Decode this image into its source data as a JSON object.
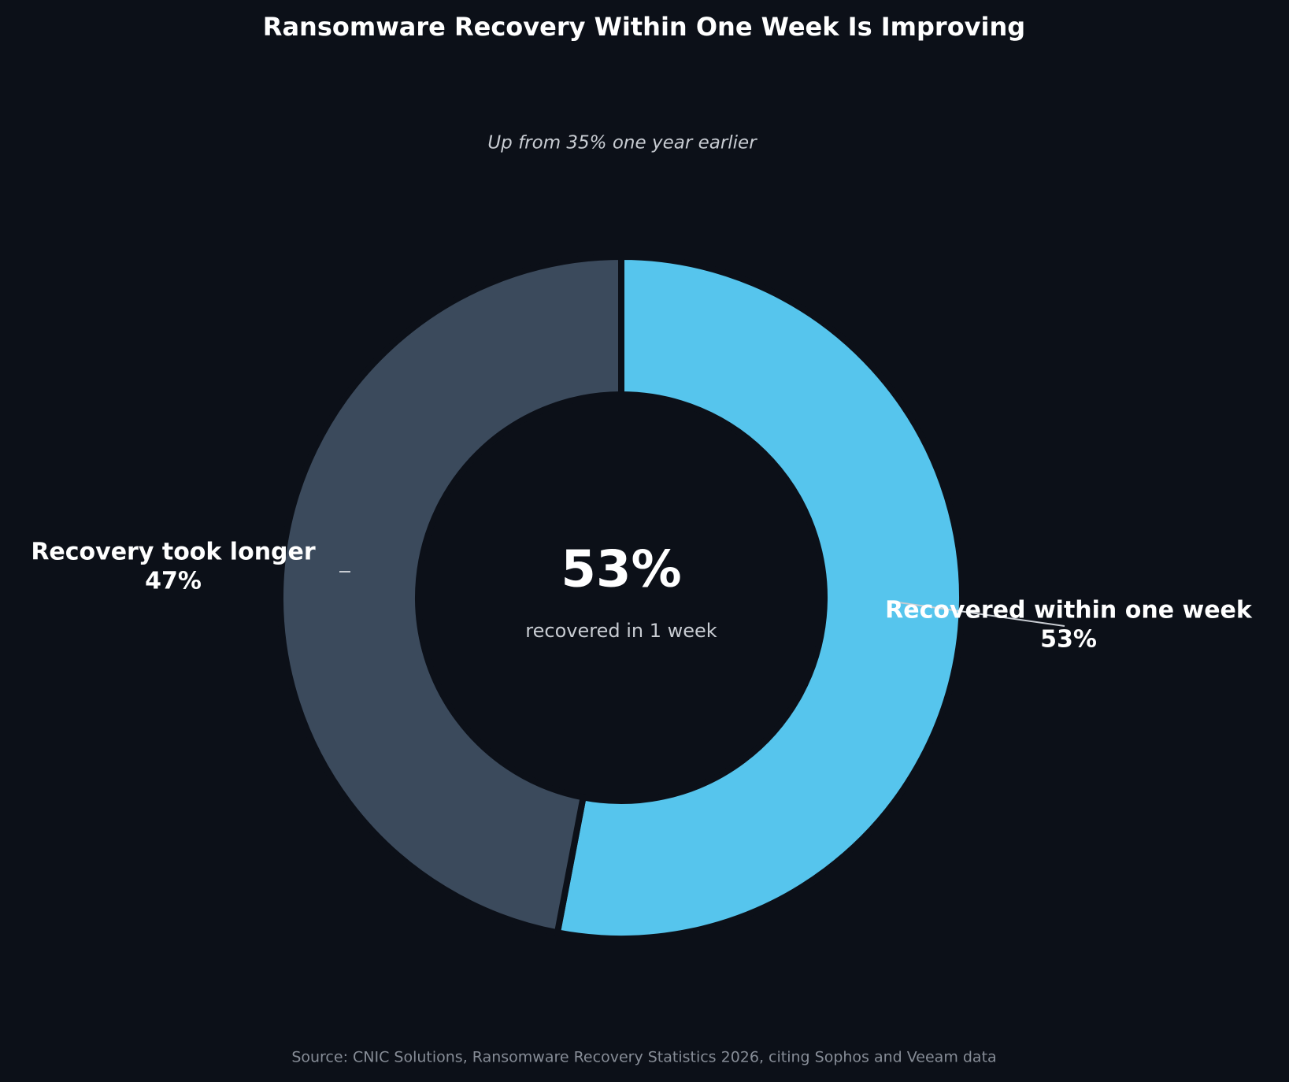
{
  "chart_data": {
    "type": "pie",
    "donut": true,
    "title": "Ransomware Recovery Within One Week Is Improving",
    "subtitle": "Up from 35% one year earlier",
    "categories": [
      "Recovered within one week",
      "Recovery took longer"
    ],
    "values": [
      53,
      47
    ],
    "value_labels": [
      "53%",
      "47%"
    ],
    "colors": [
      "#56c5ed",
      "#3b4a5c"
    ],
    "center_label": "recovered in 1 week",
    "source": "Source: CNIC Solutions, Ransomware Recovery Statistics 2026, citing Sophos and Veeam data"
  }
}
